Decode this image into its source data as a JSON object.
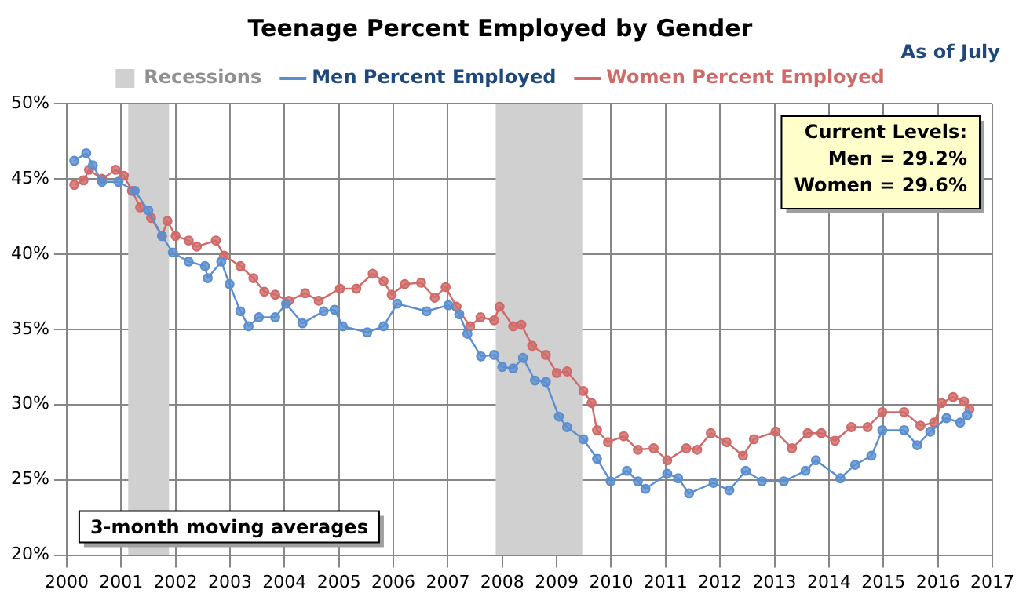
{
  "chart_data": {
    "type": "line",
    "title": "Teenage Percent Employed by Gender",
    "subtitle": "As of July",
    "annotations": [
      "Current Levels:",
      "Men = 29.2%",
      "Women = 29.6%",
      "3-month moving averages"
    ],
    "xlim": [
      2000,
      2017
    ],
    "xticks": [
      2000,
      2001,
      2002,
      2003,
      2004,
      2005,
      2006,
      2007,
      2008,
      2009,
      2010,
      2011,
      2012,
      2013,
      2014,
      2015,
      2016,
      2017
    ],
    "ylim": [
      20,
      50
    ],
    "yticks": [
      {
        "value": 20,
        "label": "20%"
      },
      {
        "value": 25,
        "label": "25%"
      },
      {
        "value": 30,
        "label": "30%"
      },
      {
        "value": 35,
        "label": "35%"
      },
      {
        "value": 40,
        "label": "40%"
      },
      {
        "value": 45,
        "label": "45%"
      },
      {
        "value": 50,
        "label": "50%"
      }
    ],
    "grid": true,
    "legend": "top",
    "marker": "circle",
    "line_style": "solid",
    "bands": [
      {
        "axis": "x",
        "from": 2001.13,
        "to": 2001.88,
        "label": "Recessions",
        "color": "#d0d0d0"
      },
      {
        "axis": "x",
        "from": 2007.88,
        "to": 2009.47,
        "color": "#d0d0d0"
      }
    ],
    "series": [
      {
        "name": "Men Percent Employed",
        "color": "#5b8ed0",
        "x": [
          2000.14,
          2000.36,
          2000.48,
          2000.65,
          2000.95,
          2001.25,
          2001.5,
          2001.75,
          2001.95,
          2002.24,
          2002.54,
          2002.59,
          2002.84,
          2002.99,
          2003.19,
          2003.34,
          2003.53,
          2003.83,
          2004.03,
          2004.33,
          2004.72,
          2004.92,
          2005.07,
          2005.52,
          2005.82,
          2006.07,
          2006.61,
          2007.01,
          2007.21,
          2007.36,
          2007.61,
          2007.85,
          2008.0,
          2008.2,
          2008.38,
          2008.6,
          2008.8,
          2009.04,
          2009.19,
          2009.49,
          2009.74,
          2009.99,
          2010.29,
          2010.49,
          2010.63,
          2011.03,
          2011.23,
          2011.43,
          2011.88,
          2012.17,
          2012.47,
          2012.77,
          2013.17,
          2013.57,
          2013.76,
          2014.21,
          2014.48,
          2014.78,
          2014.98,
          2015.38,
          2015.62,
          2015.86,
          2016.16,
          2016.41,
          2016.54
        ],
        "values": [
          46.2,
          46.7,
          45.9,
          44.8,
          44.8,
          44.2,
          42.9,
          41.2,
          40.1,
          39.5,
          39.2,
          38.4,
          39.5,
          38.0,
          36.2,
          35.2,
          35.8,
          35.8,
          36.7,
          35.4,
          36.2,
          36.3,
          35.2,
          34.8,
          35.2,
          36.7,
          36.2,
          36.6,
          36.0,
          34.7,
          33.2,
          33.3,
          32.5,
          32.4,
          33.1,
          31.6,
          31.5,
          29.2,
          28.5,
          27.7,
          26.4,
          24.9,
          25.6,
          24.9,
          24.4,
          25.4,
          25.1,
          24.1,
          24.8,
          24.3,
          25.6,
          24.9,
          24.9,
          25.6,
          26.3,
          25.1,
          26.0,
          26.6,
          28.3,
          28.3,
          27.3,
          28.2,
          29.1,
          28.8,
          29.3
        ]
      },
      {
        "name": "Women Percent Employed",
        "color": "#d06a68",
        "x": [
          2000.14,
          2000.31,
          2000.41,
          2000.65,
          2000.9,
          2001.05,
          2001.2,
          2001.35,
          2001.55,
          2001.75,
          2001.85,
          2002.0,
          2002.24,
          2002.39,
          2002.74,
          2002.89,
          2003.19,
          2003.43,
          2003.63,
          2003.83,
          2004.08,
          2004.38,
          2004.63,
          2005.02,
          2005.32,
          2005.62,
          2005.82,
          2005.97,
          2006.21,
          2006.51,
          2006.76,
          2006.96,
          2007.16,
          2007.41,
          2007.6,
          2007.85,
          2007.95,
          2008.2,
          2008.35,
          2008.55,
          2008.8,
          2009.0,
          2009.19,
          2009.49,
          2009.64,
          2009.74,
          2009.94,
          2010.23,
          2010.49,
          2010.78,
          2011.03,
          2011.38,
          2011.58,
          2011.83,
          2012.12,
          2012.42,
          2012.62,
          2013.02,
          2013.32,
          2013.61,
          2013.86,
          2014.11,
          2014.41,
          2014.71,
          2014.98,
          2015.38,
          2015.68,
          2015.93,
          2016.07,
          2016.28,
          2016.48,
          2016.58
        ],
        "values": [
          44.6,
          44.9,
          45.6,
          45.0,
          45.6,
          45.2,
          44.2,
          43.1,
          42.4,
          41.2,
          42.2,
          41.2,
          40.9,
          40.5,
          40.9,
          39.9,
          39.2,
          38.4,
          37.5,
          37.3,
          36.9,
          37.4,
          36.9,
          37.7,
          37.7,
          38.7,
          38.2,
          37.3,
          38.0,
          38.1,
          37.1,
          37.8,
          36.5,
          35.2,
          35.8,
          35.6,
          36.5,
          35.2,
          35.3,
          33.9,
          33.3,
          32.1,
          32.2,
          30.9,
          30.1,
          28.3,
          27.5,
          27.9,
          27.0,
          27.1,
          26.3,
          27.1,
          27.0,
          28.1,
          27.5,
          26.6,
          27.7,
          28.2,
          27.1,
          28.1,
          28.1,
          27.6,
          28.5,
          28.5,
          29.5,
          29.5,
          28.6,
          28.8,
          30.1,
          30.5,
          30.2,
          29.7
        ]
      }
    ]
  }
}
